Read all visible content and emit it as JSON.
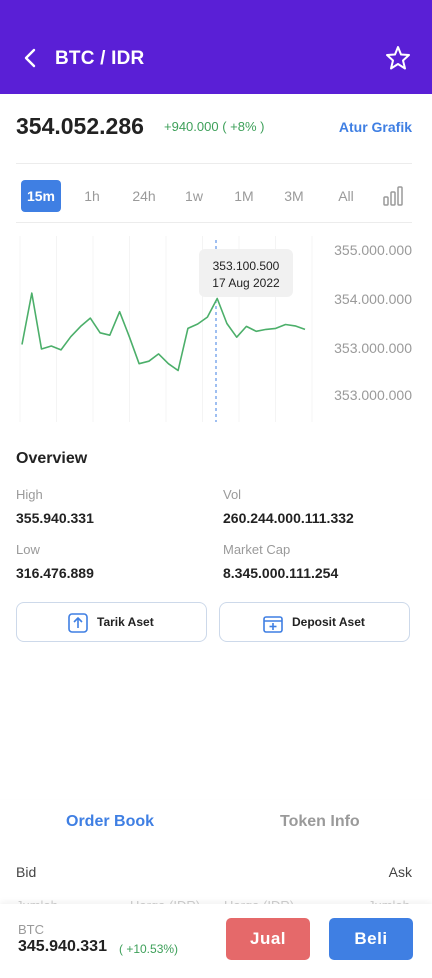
{
  "header": {
    "title": "BTC / IDR"
  },
  "price": {
    "value": "354.052.286",
    "change": "+940.000 ( +8% )",
    "atur_grafik": "Atur Grafik"
  },
  "timeframes": [
    "15m",
    "1h",
    "24h",
    "1w",
    "1M",
    "3M",
    "All"
  ],
  "active_timeframe": "15m",
  "chart_data": {
    "type": "line",
    "y_tick_labels": [
      "355.000.000",
      "354.000.000",
      "353.000.000",
      "353.000.000"
    ],
    "values": [
      353050000,
      354100000,
      352960000,
      353020000,
      352940000,
      353210000,
      353420000,
      353590000,
      353290000,
      353240000,
      353720000,
      353210000,
      352660000,
      352710000,
      352860000,
      352660000,
      352520000,
      353380000,
      353470000,
      353610000,
      353990000,
      353480000,
      353200000,
      353420000,
      353320000,
      353360000,
      353380000,
      353460000,
      353430000,
      353360000
    ],
    "tooltip": {
      "value": "353.100.500",
      "date": "17 Aug 2022"
    },
    "color": "#4caf6a",
    "crosshair_color": "#3f7fe3"
  },
  "overview": {
    "title": "Overview",
    "high_label": "High",
    "high_value": "355.940.331",
    "vol_label": "Vol",
    "vol_value": "260.244.000.111.332",
    "low_label": "Low",
    "low_value": "316.476.889",
    "market_cap_label": "Market Cap",
    "market_cap_value": "8.345.000.111.254"
  },
  "actions": {
    "tarik": "Tarik Aset",
    "deposit": "Deposit Aset"
  },
  "tabs": {
    "order_book": "Order Book",
    "token_info": "Token Info"
  },
  "order_book": {
    "bid": "Bid",
    "ask": "Ask",
    "col1": "Jumlah",
    "col2": "Harga (IDR)",
    "col3": "Harga (IDR)",
    "col4": "Jumlah"
  },
  "bottom_bar": {
    "label": "BTC",
    "price": "345.940.331",
    "change": "( +10.53%)",
    "sell": "Jual",
    "buy": "Beli"
  },
  "colors": {
    "header": "#5a1fd6",
    "accent": "#3f7fe3",
    "positive": "#3ea05a",
    "sell": "#e5696a"
  }
}
